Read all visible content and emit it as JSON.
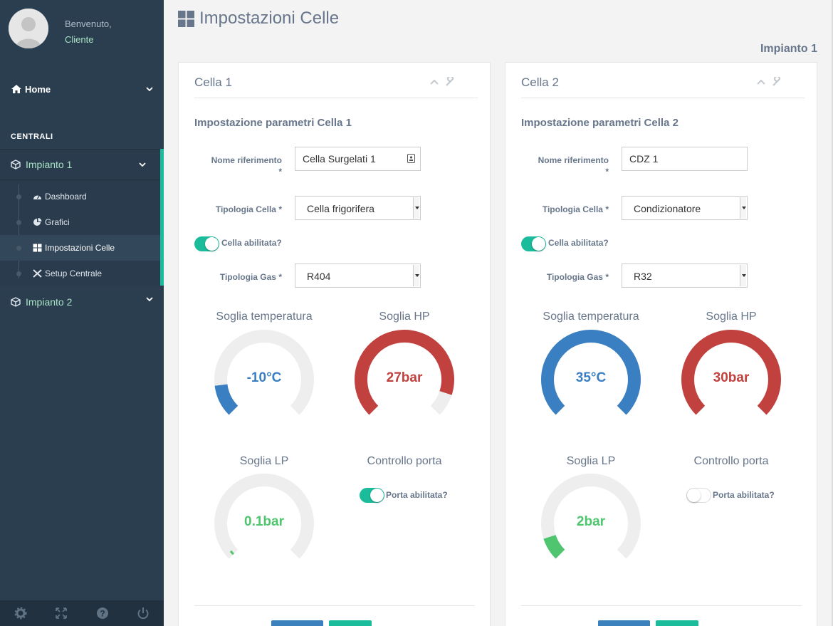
{
  "sidebar": {
    "welcome": "Benvenuto,",
    "username": "Cliente",
    "home_label": "Home",
    "section_title": "CENTRALI",
    "impianto1_label": "Impianto 1",
    "items": [
      {
        "label": "Dashboard"
      },
      {
        "label": "Grafici"
      },
      {
        "label": "Impostazioni Celle"
      },
      {
        "label": "Setup Centrale"
      }
    ],
    "impianto2_label": "Impianto 2"
  },
  "page": {
    "title": "Impostazioni Celle",
    "subtitle": "Impianto 1"
  },
  "colors": {
    "sidebar_bg": "#2b3e50",
    "accent": "#1abc9c",
    "temp_blue": "#3a7fc1",
    "hp_red": "#c1413f",
    "lp_green": "#4fc56f",
    "track": "#eeeeee"
  },
  "cells": [
    {
      "title": "Cella 1",
      "section": "Impostazione parametri Cella 1",
      "nome_label": "Nome riferimento",
      "required_mark": "*",
      "nome_value": "Cella Surgelati 1",
      "tipologia_label": "Tipologia Cella *",
      "tipologia_value": "Cella frigorifera",
      "abilitata_label": "Cella abilitata?",
      "abilitata": true,
      "gas_label": "Tipologia Gas *",
      "gas_value": "R404",
      "gauges": {
        "temp": {
          "title": "Soglia temperatura",
          "display": "-10°C",
          "fraction": 0.14
        },
        "hp": {
          "title": "Soglia HP",
          "display": "27bar",
          "fraction": 0.9
        },
        "lp": {
          "title": "Soglia LP",
          "display": "0.1bar",
          "fraction": 0.02
        }
      },
      "porta_title": "Controllo porta",
      "porta_label": "Porta abilitata?",
      "porta_abilitata": true
    },
    {
      "title": "Cella 2",
      "section": "Impostazione parametri Cella 2",
      "nome_label": "Nome riferimento",
      "required_mark": "*",
      "nome_value": "CDZ 1",
      "tipologia_label": "Tipologia Cella *",
      "tipologia_value": "Condizionatore",
      "abilitata_label": "Cella abilitata?",
      "abilitata": true,
      "gas_label": "Tipologia Gas *",
      "gas_value": "R32",
      "gauges": {
        "temp": {
          "title": "Soglia temperatura",
          "display": "35°C",
          "fraction": 1.0
        },
        "hp": {
          "title": "Soglia HP",
          "display": "30bar",
          "fraction": 1.0
        },
        "lp": {
          "title": "Soglia LP",
          "display": "2bar",
          "fraction": 0.1
        }
      },
      "porta_title": "Controllo porta",
      "porta_label": "Porta abilitata?",
      "porta_abilitata": false
    }
  ]
}
